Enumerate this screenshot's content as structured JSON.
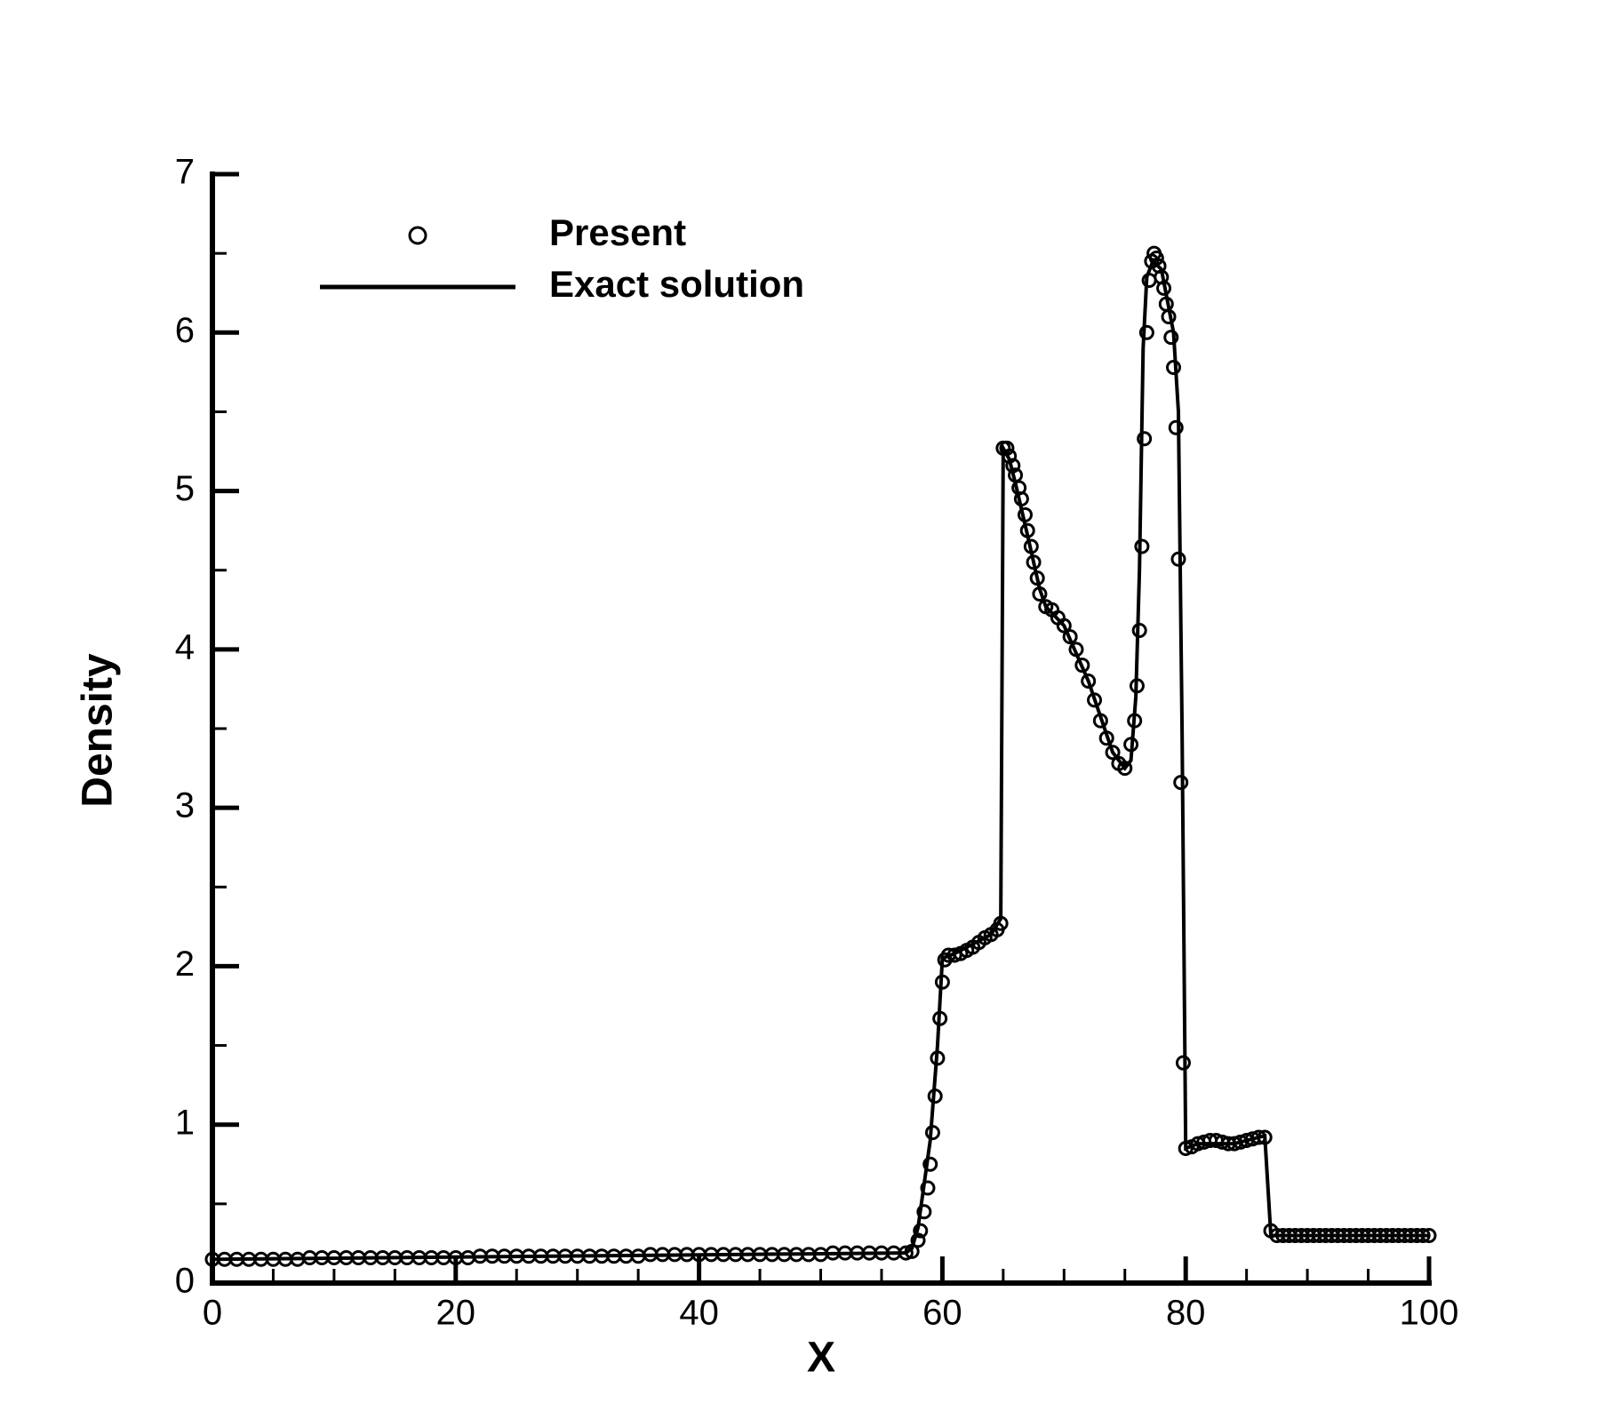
{
  "chart_data": {
    "type": "line",
    "xlabel": "X",
    "ylabel": "Density",
    "xlim": [
      0,
      100
    ],
    "ylim": [
      0,
      7
    ],
    "xticks": [
      0,
      20,
      40,
      60,
      80,
      100
    ],
    "yticks": [
      0,
      1,
      2,
      3,
      4,
      5,
      6,
      7
    ],
    "xminorticks": [
      5,
      10,
      15,
      25,
      30,
      35,
      45,
      50,
      55,
      65,
      70,
      75,
      85,
      90,
      95
    ],
    "yminorticks": [
      0.5,
      1.5,
      2.5,
      3.5,
      4.5,
      5.5,
      6.5
    ],
    "series": [
      {
        "name": "Present",
        "style": "markers",
        "marker": "circle",
        "color": "#000000",
        "x": [
          0,
          1,
          2,
          3,
          4,
          5,
          6,
          7,
          8,
          9,
          10,
          11,
          12,
          13,
          14,
          15,
          16,
          17,
          18,
          19,
          20,
          21,
          22,
          23,
          24,
          25,
          26,
          27,
          28,
          29,
          30,
          31,
          32,
          33,
          34,
          35,
          36,
          37,
          38,
          39,
          40,
          41,
          42,
          43,
          44,
          45,
          46,
          47,
          48,
          49,
          50,
          51,
          52,
          53,
          54,
          55,
          56,
          57,
          57.5,
          58,
          58.2,
          58.5,
          58.8,
          59,
          59.2,
          59.4,
          59.6,
          59.8,
          60,
          60.2,
          60.5,
          61,
          61.5,
          62,
          62.5,
          63,
          63.5,
          64,
          64.5,
          64.8,
          65,
          65.3,
          65.5,
          65.8,
          66,
          66.3,
          66.5,
          66.8,
          67,
          67.3,
          67.5,
          67.8,
          68,
          68.5,
          69,
          69.5,
          70,
          70.5,
          71,
          71.5,
          72,
          72.5,
          73,
          73.5,
          74,
          74.5,
          75,
          75.5,
          75.8,
          76,
          76.2,
          76.4,
          76.6,
          76.8,
          77,
          77.2,
          77.4,
          77.6,
          77.8,
          78,
          78.2,
          78.4,
          78.6,
          78.8,
          79,
          79.2,
          79.4,
          79.6,
          79.8,
          80,
          80.5,
          81,
          81.5,
          82,
          82.5,
          83,
          83.5,
          84,
          84.5,
          85,
          85.5,
          86,
          86.5,
          87,
          87.5,
          88,
          88.5,
          89,
          89.5,
          90,
          90.5,
          91,
          91.5,
          92,
          92.5,
          93,
          93.5,
          94,
          94.5,
          95,
          95.5,
          96,
          96.5,
          97,
          97.5,
          98,
          98.5,
          99,
          99.5,
          100
        ],
        "values": [
          0.15,
          0.15,
          0.15,
          0.15,
          0.15,
          0.15,
          0.15,
          0.15,
          0.16,
          0.16,
          0.16,
          0.16,
          0.16,
          0.16,
          0.16,
          0.16,
          0.16,
          0.16,
          0.16,
          0.16,
          0.16,
          0.16,
          0.17,
          0.17,
          0.17,
          0.17,
          0.17,
          0.17,
          0.17,
          0.17,
          0.17,
          0.17,
          0.17,
          0.17,
          0.17,
          0.17,
          0.18,
          0.18,
          0.18,
          0.18,
          0.18,
          0.18,
          0.18,
          0.18,
          0.18,
          0.18,
          0.18,
          0.18,
          0.18,
          0.18,
          0.18,
          0.19,
          0.19,
          0.19,
          0.19,
          0.19,
          0.19,
          0.19,
          0.2,
          0.27,
          0.33,
          0.45,
          0.6,
          0.75,
          0.95,
          1.18,
          1.42,
          1.67,
          1.9,
          2.04,
          2.07,
          2.07,
          2.08,
          2.1,
          2.12,
          2.15,
          2.18,
          2.2,
          2.23,
          2.27,
          5.27,
          5.27,
          5.22,
          5.16,
          5.1,
          5.02,
          4.95,
          4.85,
          4.75,
          4.65,
          4.55,
          4.45,
          4.35,
          4.27,
          4.25,
          4.2,
          4.15,
          4.08,
          4.0,
          3.9,
          3.8,
          3.68,
          3.55,
          3.44,
          3.35,
          3.28,
          3.25,
          3.4,
          3.55,
          3.77,
          4.12,
          4.65,
          5.33,
          6.0,
          6.33,
          6.45,
          6.5,
          6.47,
          6.42,
          6.35,
          6.28,
          6.18,
          6.1,
          5.97,
          5.78,
          5.4,
          4.57,
          3.16,
          1.39,
          0.85,
          0.86,
          0.88,
          0.89,
          0.9,
          0.9,
          0.89,
          0.88,
          0.88,
          0.89,
          0.9,
          0.91,
          0.92,
          0.92,
          0.33,
          0.3,
          0.3,
          0.3,
          0.3,
          0.3,
          0.3,
          0.3,
          0.3,
          0.3,
          0.3,
          0.3,
          0.3,
          0.3,
          0.3,
          0.3,
          0.3,
          0.3,
          0.3,
          0.3,
          0.3,
          0.3,
          0.3,
          0.3,
          0.3,
          0.3,
          0.3
        ]
      },
      {
        "name": "Exact solution",
        "style": "line",
        "color": "#000000",
        "x": [
          0,
          57,
          57.5,
          58,
          59,
          59.6,
          60,
          61,
          64,
          64.8,
          65,
          65.5,
          66,
          67,
          68,
          68.5,
          70,
          72,
          74,
          75,
          75.5,
          75.9,
          76.2,
          76.5,
          76.8,
          77.3,
          78,
          79,
          79.4,
          79.7,
          80,
          81,
          84,
          86.5,
          87,
          100
        ],
        "values": [
          0.15,
          0.19,
          0.22,
          0.35,
          0.9,
          1.5,
          2.05,
          2.08,
          2.2,
          2.3,
          5.27,
          5.2,
          5.05,
          4.72,
          4.38,
          4.27,
          4.15,
          3.8,
          3.35,
          3.25,
          3.3,
          3.7,
          4.5,
          5.9,
          6.35,
          6.45,
          6.4,
          6.0,
          5.5,
          3.5,
          0.85,
          0.88,
          0.88,
          0.93,
          0.3,
          0.3
        ]
      }
    ]
  }
}
